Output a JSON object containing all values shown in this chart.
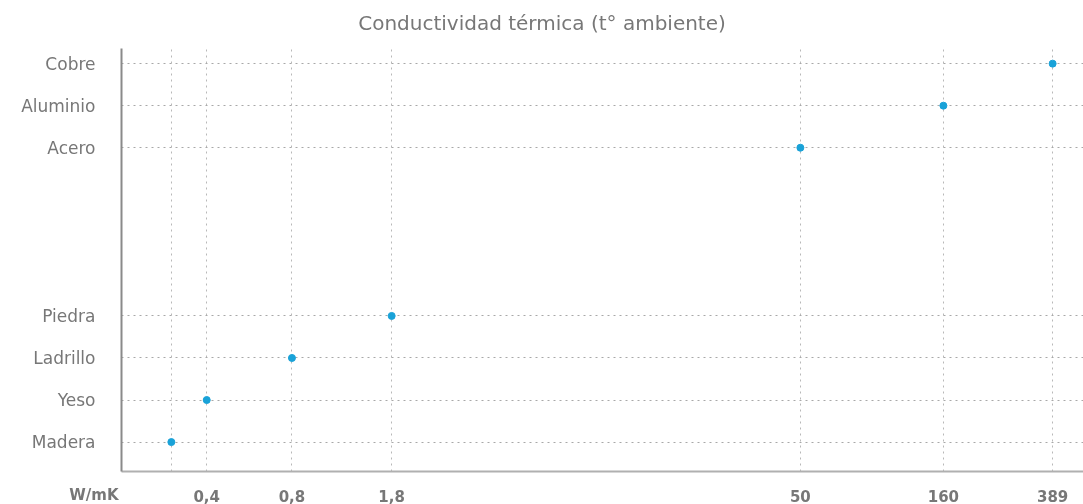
{
  "chart_data": {
    "type": "scatter",
    "title": "Conductividad térmica (t° ambiente)",
    "xlabel": "W/mK",
    "categories": [
      "Cobre",
      "Aluminio",
      "Acero",
      null,
      null,
      null,
      "Piedra",
      "Ladrillo",
      "Yeso",
      "Madera"
    ],
    "values": [
      389,
      160,
      50,
      null,
      null,
      null,
      1.8,
      0.8,
      0.4,
      0.3
    ],
    "color": "#19a2d8",
    "orientation": "horizontal",
    "log": "x",
    "xlim": [
      0.2,
      500
    ],
    "xticks": [
      {
        "value": 0.3,
        "label": null
      },
      {
        "value": 0.4,
        "label": "0,4"
      },
      {
        "value": 0.8,
        "label": "0,8"
      },
      {
        "value": 1.8,
        "label": "1,8"
      },
      {
        "value": 50,
        "label": "50"
      },
      {
        "value": 160,
        "label": "160"
      },
      {
        "value": 389,
        "label": "389"
      }
    ],
    "grid": true,
    "marker": "circle"
  }
}
